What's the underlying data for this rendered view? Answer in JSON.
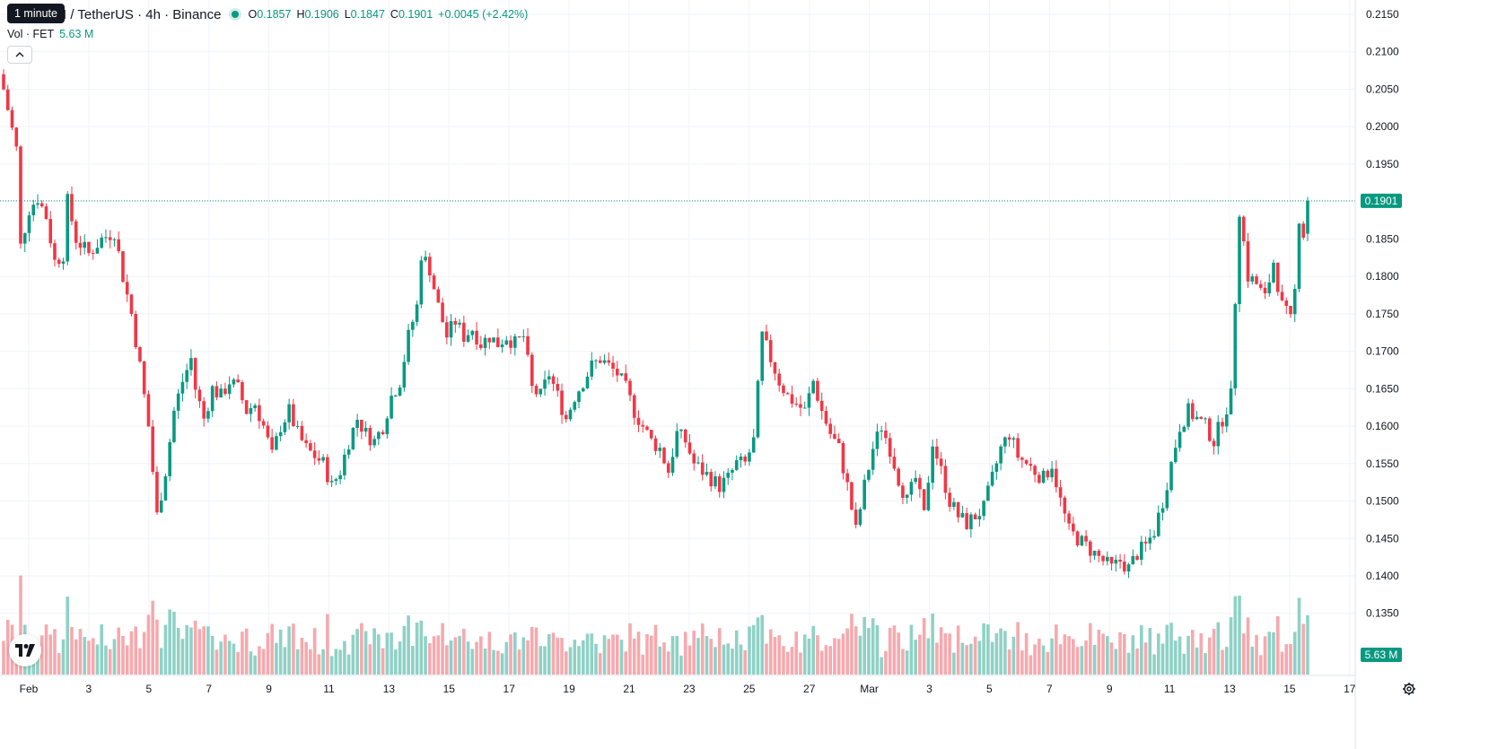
{
  "header": {
    "tooltip": "1 minute",
    "symbol_title": "AI / TetherUS · 4h · Binance",
    "ohlc": {
      "o_label": "O",
      "o_value": "0.1857",
      "h_label": "H",
      "h_value": "0.1906",
      "l_label": "L",
      "l_value": "0.1847",
      "c_label": "C",
      "c_value": "0.1901",
      "change": "+0.0045 (+2.42%)"
    },
    "volume_label": "Vol · FET",
    "volume_value": "5.63 M"
  },
  "price_axis": {
    "ticks": [
      "0.2150",
      "0.2100",
      "0.2050",
      "0.2000",
      "0.1950",
      "0.1900",
      "0.1850",
      "0.1800",
      "0.1750",
      "0.1700",
      "0.1650",
      "0.1600",
      "0.1550",
      "0.1500",
      "0.1450",
      "0.1400",
      "0.1350"
    ],
    "last_price": "0.1901",
    "volume_badge": "5.63 M"
  },
  "time_axis": {
    "labels": [
      "Feb",
      "3",
      "5",
      "7",
      "9",
      "11",
      "13",
      "15",
      "17",
      "19",
      "21",
      "23",
      "25",
      "27",
      "Mar",
      "3",
      "5",
      "7",
      "9",
      "11",
      "13",
      "15",
      "17"
    ]
  },
  "icons": {
    "collapse": "chevron-up-icon",
    "logo": "tradingview-logo-icon",
    "settings": "gear-icon"
  },
  "colors": {
    "up": "#089981",
    "down": "#f23645",
    "volume_up": "#8fd1c6",
    "volume_down": "#f6a9ae",
    "grid": "#f0f3fa",
    "last_price_line": "#089981"
  },
  "chart_data": {
    "type": "candlestick",
    "symbol": "AI / TetherUS",
    "interval": "4h",
    "exchange": "Binance",
    "ylim": [
      0.131,
      0.2175
    ],
    "waypoints_close": [
      [
        0,
        0.205
      ],
      [
        3,
        0.197
      ],
      [
        4,
        0.184
      ],
      [
        6,
        0.189
      ],
      [
        8,
        0.1905
      ],
      [
        10,
        0.188
      ],
      [
        12,
        0.182
      ],
      [
        14,
        0.183
      ],
      [
        15,
        0.19
      ],
      [
        17,
        0.185
      ],
      [
        20,
        0.183
      ],
      [
        23,
        0.185
      ],
      [
        26,
        0.186
      ],
      [
        28,
        0.18
      ],
      [
        30,
        0.175
      ],
      [
        32,
        0.168
      ],
      [
        34,
        0.16
      ],
      [
        36,
        0.148
      ],
      [
        38,
        0.154
      ],
      [
        40,
        0.162
      ],
      [
        42,
        0.166
      ],
      [
        44,
        0.169
      ],
      [
        45,
        0.165
      ],
      [
        47,
        0.161
      ],
      [
        49,
        0.165
      ],
      [
        51,
        0.164
      ],
      [
        53,
        0.166
      ],
      [
        55,
        0.165
      ],
      [
        57,
        0.162
      ],
      [
        59,
        0.163
      ],
      [
        61,
        0.16
      ],
      [
        63,
        0.156
      ],
      [
        65,
        0.16
      ],
      [
        67,
        0.162
      ],
      [
        69,
        0.159
      ],
      [
        71,
        0.157
      ],
      [
        73,
        0.156
      ],
      [
        75,
        0.155
      ],
      [
        77,
        0.152
      ],
      [
        79,
        0.154
      ],
      [
        81,
        0.158
      ],
      [
        83,
        0.161
      ],
      [
        85,
        0.159
      ],
      [
        87,
        0.158
      ],
      [
        89,
        0.16
      ],
      [
        91,
        0.164
      ],
      [
        93,
        0.166
      ],
      [
        95,
        0.172
      ],
      [
        97,
        0.176
      ],
      [
        98,
        0.183
      ],
      [
        100,
        0.181
      ],
      [
        102,
        0.176
      ],
      [
        104,
        0.172
      ],
      [
        106,
        0.174
      ],
      [
        108,
        0.172
      ],
      [
        110,
        0.173
      ],
      [
        112,
        0.171
      ],
      [
        114,
        0.172
      ],
      [
        116,
        0.171
      ],
      [
        118,
        0.172
      ],
      [
        120,
        0.171
      ],
      [
        122,
        0.172
      ],
      [
        124,
        0.165
      ],
      [
        126,
        0.164
      ],
      [
        128,
        0.167
      ],
      [
        130,
        0.164
      ],
      [
        132,
        0.161
      ],
      [
        134,
        0.164
      ],
      [
        136,
        0.166
      ],
      [
        138,
        0.168
      ],
      [
        140,
        0.169
      ],
      [
        142,
        0.168
      ],
      [
        144,
        0.167
      ],
      [
        146,
        0.165
      ],
      [
        148,
        0.162
      ],
      [
        150,
        0.16
      ],
      [
        152,
        0.158
      ],
      [
        154,
        0.157
      ],
      [
        156,
        0.154
      ],
      [
        158,
        0.159
      ],
      [
        160,
        0.158
      ],
      [
        162,
        0.155
      ],
      [
        164,
        0.154
      ],
      [
        166,
        0.153
      ],
      [
        168,
        0.152
      ],
      [
        170,
        0.153
      ],
      [
        172,
        0.155
      ],
      [
        174,
        0.155
      ],
      [
        176,
        0.158
      ],
      [
        178,
        0.172
      ],
      [
        180,
        0.169
      ],
      [
        182,
        0.166
      ],
      [
        184,
        0.164
      ],
      [
        186,
        0.163
      ],
      [
        188,
        0.162
      ],
      [
        190,
        0.166
      ],
      [
        192,
        0.162
      ],
      [
        194,
        0.159
      ],
      [
        196,
        0.157
      ],
      [
        198,
        0.152
      ],
      [
        200,
        0.146
      ],
      [
        202,
        0.152
      ],
      [
        204,
        0.157
      ],
      [
        206,
        0.16
      ],
      [
        208,
        0.157
      ],
      [
        210,
        0.153
      ],
      [
        212,
        0.15
      ],
      [
        214,
        0.153
      ],
      [
        216,
        0.148
      ],
      [
        218,
        0.158
      ],
      [
        220,
        0.154
      ],
      [
        222,
        0.15
      ],
      [
        224,
        0.148
      ],
      [
        226,
        0.147
      ],
      [
        228,
        0.148
      ],
      [
        230,
        0.149
      ],
      [
        232,
        0.153
      ],
      [
        234,
        0.157
      ],
      [
        236,
        0.159
      ],
      [
        238,
        0.156
      ],
      [
        240,
        0.155
      ],
      [
        242,
        0.154
      ],
      [
        244,
        0.153
      ],
      [
        246,
        0.155
      ],
      [
        248,
        0.15
      ],
      [
        250,
        0.146
      ],
      [
        252,
        0.145
      ],
      [
        254,
        0.144
      ],
      [
        256,
        0.143
      ],
      [
        258,
        0.142
      ],
      [
        260,
        0.141
      ],
      [
        262,
        0.142
      ],
      [
        264,
        0.141
      ],
      [
        266,
        0.143
      ],
      [
        268,
        0.144
      ],
      [
        270,
        0.146
      ],
      [
        272,
        0.15
      ],
      [
        274,
        0.155
      ],
      [
        276,
        0.16
      ],
      [
        278,
        0.162
      ],
      [
        280,
        0.161
      ],
      [
        282,
        0.16
      ],
      [
        284,
        0.158
      ],
      [
        286,
        0.161
      ],
      [
        288,
        0.164
      ],
      [
        289,
        0.177
      ],
      [
        290,
        0.189
      ],
      [
        292,
        0.18
      ],
      [
        294,
        0.179
      ],
      [
        296,
        0.177
      ],
      [
        298,
        0.182
      ],
      [
        300,
        0.176
      ],
      [
        302,
        0.174
      ],
      [
        303,
        0.178
      ],
      [
        304,
        0.188
      ],
      [
        305,
        0.1857
      ],
      [
        306,
        0.1901
      ]
    ],
    "last_candle": {
      "open": 0.1857,
      "high": 0.1906,
      "low": 0.1847,
      "close": 0.1901
    },
    "last_volume": "5.63 M"
  }
}
